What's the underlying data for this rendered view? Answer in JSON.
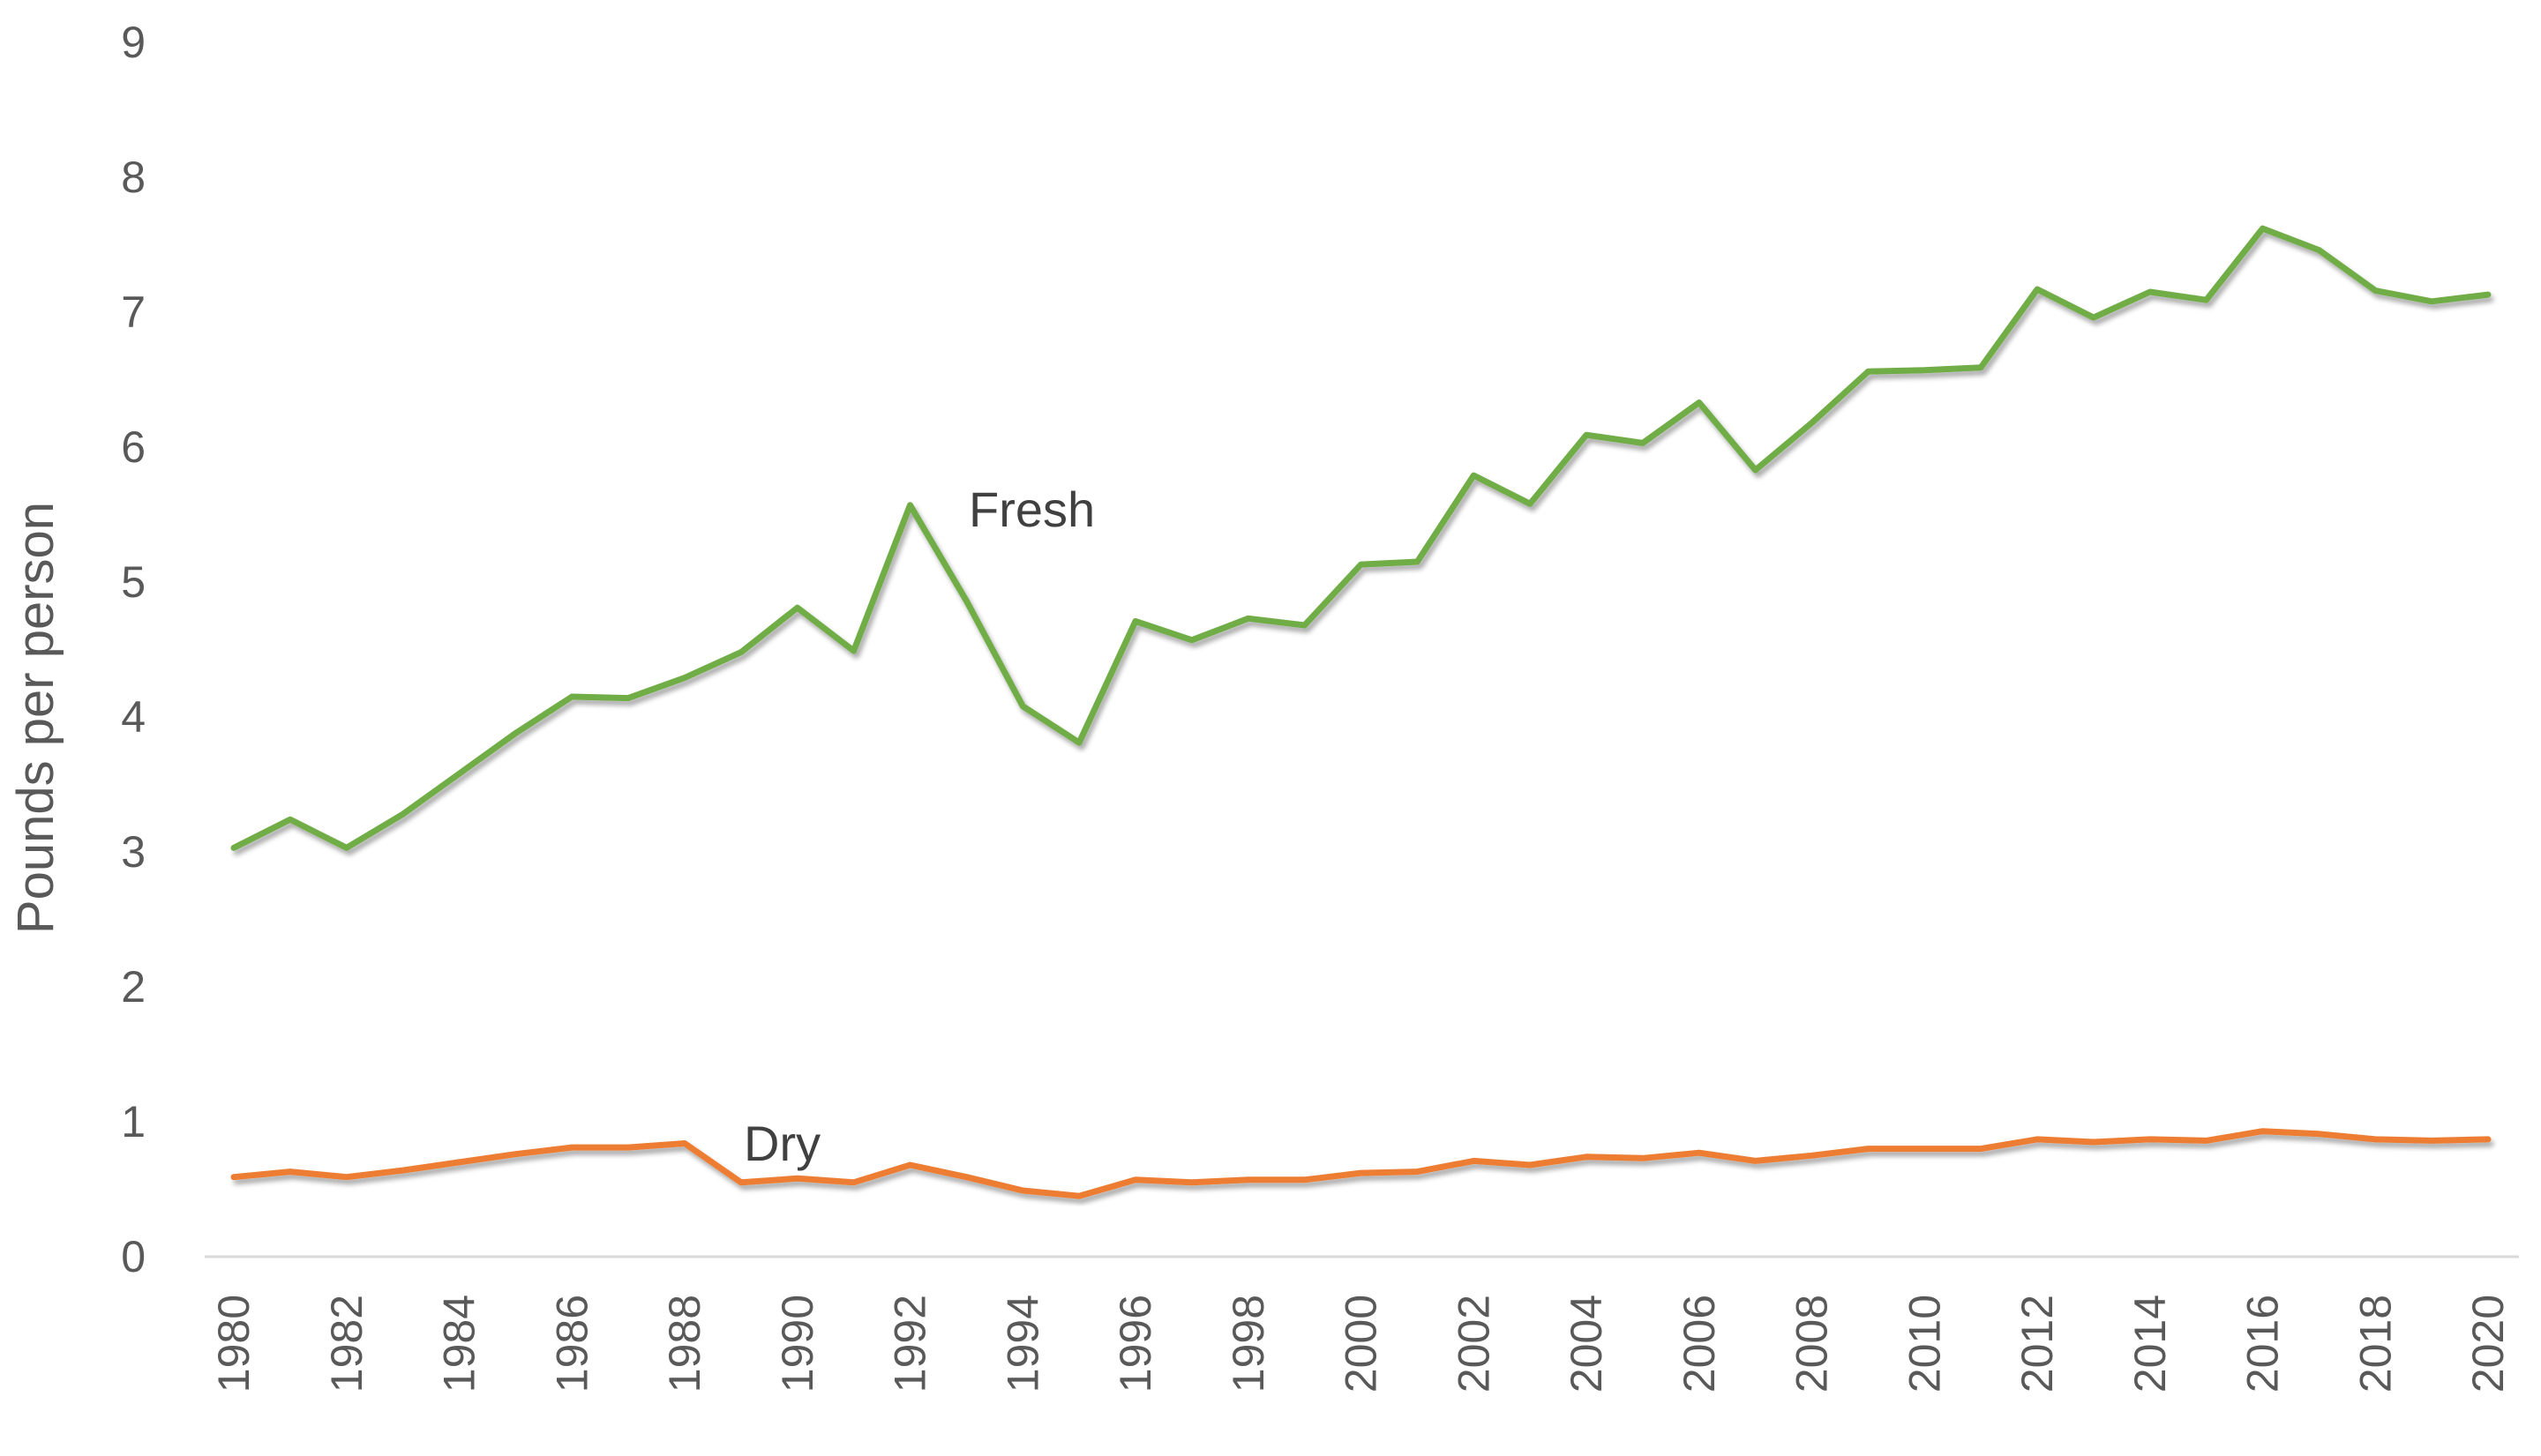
{
  "chart_data": {
    "type": "line",
    "title": "",
    "xlabel": "",
    "ylabel": "Pounds per person",
    "ylim": [
      0,
      9
    ],
    "yticks": [
      "0",
      "1",
      "2",
      "3",
      "4",
      "5",
      "6",
      "7",
      "8",
      "9"
    ],
    "x": [
      1980,
      1981,
      1982,
      1983,
      1984,
      1985,
      1986,
      1987,
      1988,
      1989,
      1990,
      1991,
      1992,
      1993,
      1994,
      1995,
      1996,
      1997,
      1998,
      1999,
      2000,
      2001,
      2002,
      2003,
      2004,
      2005,
      2006,
      2007,
      2008,
      2009,
      2010,
      2011,
      2012,
      2013,
      2014,
      2015,
      2016,
      2017,
      2018,
      2019,
      2020
    ],
    "xticks": [
      "1980",
      "1982",
      "1984",
      "1986",
      "1988",
      "1990",
      "1992",
      "1994",
      "1996",
      "1998",
      "2000",
      "2002",
      "2004",
      "2006",
      "2008",
      "2010",
      "2012",
      "2014",
      "2016",
      "2018",
      "2020"
    ],
    "grid": false,
    "series": [
      {
        "name": "Fresh",
        "color": "#70ad47",
        "values": [
          3.03,
          3.24,
          3.03,
          3.28,
          3.58,
          3.88,
          4.15,
          4.14,
          4.29,
          4.48,
          4.81,
          4.49,
          5.57,
          4.86,
          4.08,
          3.81,
          4.71,
          4.57,
          4.73,
          4.68,
          5.13,
          5.15,
          5.79,
          5.58,
          6.09,
          6.03,
          6.33,
          5.83,
          6.18,
          6.56,
          6.57,
          6.59,
          7.17,
          6.96,
          7.15,
          7.09,
          7.62,
          7.46,
          7.16,
          7.08,
          7.13
        ]
      },
      {
        "name": "Dry",
        "color": "#ed7d31",
        "values": [
          0.59,
          0.63,
          0.59,
          0.64,
          0.7,
          0.76,
          0.81,
          0.81,
          0.84,
          0.55,
          0.58,
          0.55,
          0.68,
          0.59,
          0.49,
          0.45,
          0.57,
          0.55,
          0.57,
          0.57,
          0.62,
          0.63,
          0.71,
          0.68,
          0.74,
          0.73,
          0.77,
          0.71,
          0.75,
          0.8,
          0.8,
          0.8,
          0.87,
          0.85,
          0.87,
          0.86,
          0.93,
          0.91,
          0.87,
          0.86,
          0.87
        ]
      }
    ],
    "annotations": [
      "Fresh",
      "Dry"
    ]
  }
}
